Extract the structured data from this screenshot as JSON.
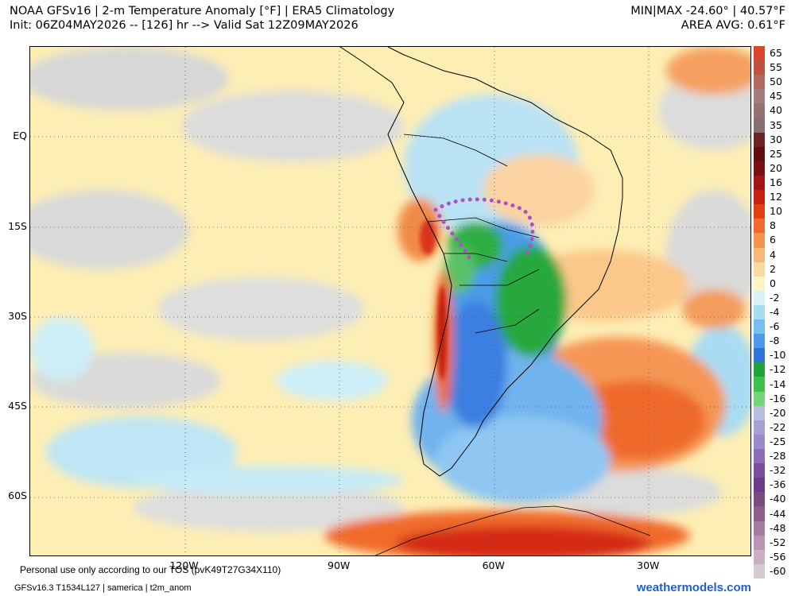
{
  "header": {
    "title": "NOAA GFSv16 | 2-m Temperature Anomaly [°F] | ERA5 Climatology",
    "init_line": "Init: 06Z04MAY2026 -- [126] hr --> Valid Sat 12Z09MAY2026",
    "minmax": "MIN|MAX -24.60° | 40.57°F",
    "area_avg": "AREA AVG: 0.61°F"
  },
  "map": {
    "lat_labels": [
      "EQ",
      "15S",
      "30S",
      "45S",
      "60S"
    ],
    "lon_labels": [
      "120W",
      "90W",
      "60W",
      "30W"
    ],
    "lat_values": [
      0,
      -15,
      -30,
      -45,
      -60
    ],
    "lon_values": [
      -120,
      -90,
      -60,
      -30
    ],
    "extent": {
      "west": -150,
      "east": -10,
      "north": 15,
      "south": -70
    }
  },
  "colorbar": {
    "ticks": [
      "65",
      "55",
      "50",
      "45",
      "40",
      "35",
      "30",
      "25",
      "20",
      "16",
      "12",
      "10",
      "8",
      "6",
      "4",
      "2",
      "0",
      "-2",
      "-4",
      "-6",
      "-8",
      "-10",
      "-12",
      "-14",
      "-16",
      "-20",
      "-22",
      "-25",
      "-28",
      "-32",
      "-36",
      "-40",
      "-44",
      "-48",
      "-52",
      "-56",
      "-60"
    ],
    "colors": [
      "#d9462b",
      "#c05040",
      "#b06a62",
      "#a27d7a",
      "#927372",
      "#847070",
      "#6b2222",
      "#620e0e",
      "#7c0f0f",
      "#a31414",
      "#c82010",
      "#e24014",
      "#ef6a2c",
      "#f5944e",
      "#f9b878",
      "#fcd9a0",
      "#fff3c2",
      "#d8f1f8",
      "#a6dbf2",
      "#77bff0",
      "#4b9be8",
      "#2f73d8",
      "#1ea43a",
      "#3fbf4b",
      "#73d67a",
      "#b6bde0",
      "#a6a0d8",
      "#9b8acb",
      "#8f6ab8",
      "#7d4b9e",
      "#6d3a8a",
      "#7b4a7e",
      "#905d89",
      "#a57a9e",
      "#b895b2",
      "#c8b0c3",
      "#d6cad3"
    ]
  },
  "notes": {
    "personal_use": "Personal use only according to our TOS (pvK49T27G34X110)",
    "model_info": "GFSv16.3 T1534L127 | samerica | t2m_anom",
    "brand": "weathermodels.com"
  }
}
